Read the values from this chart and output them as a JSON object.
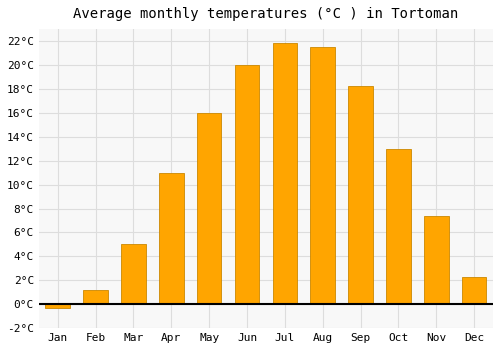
{
  "title": "Average monthly temperatures (°C ) in Tortoman",
  "months": [
    "Jan",
    "Feb",
    "Mar",
    "Apr",
    "May",
    "Jun",
    "Jul",
    "Aug",
    "Sep",
    "Oct",
    "Nov",
    "Dec"
  ],
  "values": [
    -0.3,
    1.2,
    5.0,
    11.0,
    16.0,
    20.0,
    21.8,
    21.5,
    18.2,
    13.0,
    7.4,
    2.3
  ],
  "bar_color": "#FFA500",
  "bar_edge_color": "#CC8800",
  "background_color": "#FFFFFF",
  "plot_bg_color": "#F8F8F8",
  "grid_color": "#DDDDDD",
  "ylim": [
    -2,
    23
  ],
  "yticks": [
    -2,
    0,
    2,
    4,
    6,
    8,
    10,
    12,
    14,
    16,
    18,
    20,
    22
  ],
  "title_fontsize": 10,
  "tick_fontsize": 8,
  "bar_width": 0.65
}
